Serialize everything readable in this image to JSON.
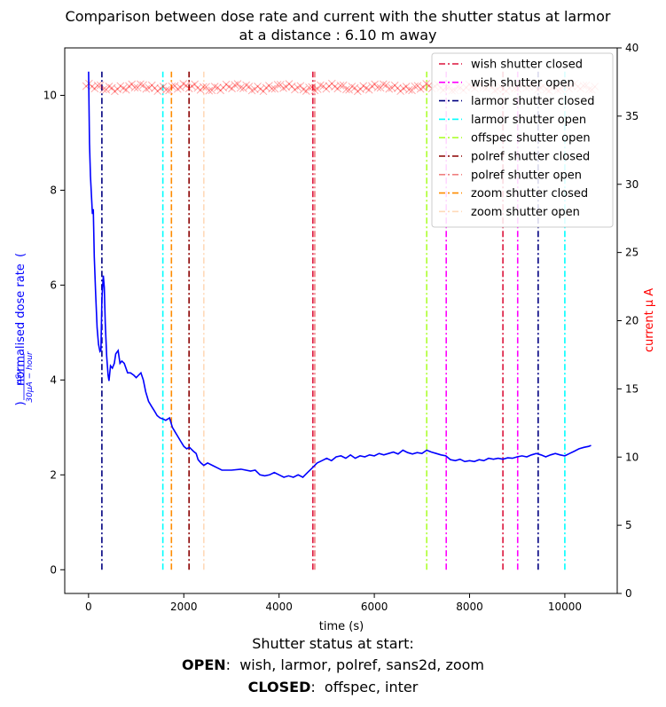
{
  "chart_data": {
    "type": "line",
    "title_line1": "Comparison between dose rate and current with the shutter status at larmor",
    "title_line2": "at a distance : 6.10 m away",
    "xlabel": "time (s)",
    "ylabel_left": "normalised dose rate",
    "ylabel_left_unit_num": "μSv",
    "ylabel_left_unit_den": "30μA − hour",
    "ylabel_right": "current μ A",
    "xlim": [
      -500,
      11100
    ],
    "ylim_left": [
      -0.5,
      11
    ],
    "ylim_right": [
      0,
      40
    ],
    "x_ticks": [
      0,
      2000,
      4000,
      6000,
      8000,
      10000
    ],
    "y_left_ticks": [
      0,
      2,
      4,
      6,
      8,
      10
    ],
    "y_right_ticks": [
      0,
      5,
      10,
      15,
      20,
      25,
      30,
      35,
      40
    ],
    "grid": false,
    "legend_position": "top-right",
    "dose_series": {
      "name": "normalised dose rate",
      "color": "#0000ff",
      "points": [
        [
          0,
          10.5
        ],
        [
          20,
          9.0
        ],
        [
          40,
          8.3
        ],
        [
          60,
          7.9
        ],
        [
          80,
          7.5
        ],
        [
          100,
          7.6
        ],
        [
          120,
          6.6
        ],
        [
          150,
          5.8
        ],
        [
          180,
          5.1
        ],
        [
          210,
          4.75
        ],
        [
          240,
          4.6
        ],
        [
          260,
          4.62
        ],
        [
          280,
          5.7
        ],
        [
          310,
          6.2
        ],
        [
          330,
          5.95
        ],
        [
          350,
          5.2
        ],
        [
          380,
          4.5
        ],
        [
          410,
          4.1
        ],
        [
          430,
          3.98
        ],
        [
          460,
          4.3
        ],
        [
          500,
          4.25
        ],
        [
          540,
          4.35
        ],
        [
          570,
          4.55
        ],
        [
          620,
          4.62
        ],
        [
          660,
          4.35
        ],
        [
          700,
          4.4
        ],
        [
          750,
          4.35
        ],
        [
          820,
          4.15
        ],
        [
          880,
          4.15
        ],
        [
          950,
          4.1
        ],
        [
          1000,
          4.05
        ],
        [
          1050,
          4.1
        ],
        [
          1100,
          4.15
        ],
        [
          1150,
          4.0
        ],
        [
          1200,
          3.75
        ],
        [
          1260,
          3.55
        ],
        [
          1320,
          3.45
        ],
        [
          1380,
          3.35
        ],
        [
          1440,
          3.25
        ],
        [
          1500,
          3.2
        ],
        [
          1560,
          3.18
        ],
        [
          1620,
          3.15
        ],
        [
          1700,
          3.2
        ],
        [
          1760,
          3.0
        ],
        [
          1820,
          2.9
        ],
        [
          1880,
          2.8
        ],
        [
          1940,
          2.7
        ],
        [
          2000,
          2.6
        ],
        [
          2060,
          2.55
        ],
        [
          2120,
          2.58
        ],
        [
          2200,
          2.5
        ],
        [
          2260,
          2.45
        ],
        [
          2300,
          2.32
        ],
        [
          2360,
          2.25
        ],
        [
          2420,
          2.2
        ],
        [
          2500,
          2.25
        ],
        [
          2600,
          2.2
        ],
        [
          2700,
          2.15
        ],
        [
          2800,
          2.1
        ],
        [
          3000,
          2.1
        ],
        [
          3200,
          2.12
        ],
        [
          3400,
          2.08
        ],
        [
          3500,
          2.1
        ],
        [
          3600,
          2.0
        ],
        [
          3700,
          1.98
        ],
        [
          3800,
          2.0
        ],
        [
          3900,
          2.05
        ],
        [
          4000,
          2.0
        ],
        [
          4100,
          1.95
        ],
        [
          4200,
          1.98
        ],
        [
          4300,
          1.95
        ],
        [
          4400,
          2.0
        ],
        [
          4500,
          1.95
        ],
        [
          4600,
          2.05
        ],
        [
          4700,
          2.15
        ],
        [
          4800,
          2.25
        ],
        [
          4900,
          2.3
        ],
        [
          5000,
          2.35
        ],
        [
          5100,
          2.3
        ],
        [
          5200,
          2.38
        ],
        [
          5300,
          2.4
        ],
        [
          5400,
          2.35
        ],
        [
          5500,
          2.42
        ],
        [
          5600,
          2.35
        ],
        [
          5700,
          2.4
        ],
        [
          5800,
          2.38
        ],
        [
          5900,
          2.42
        ],
        [
          6000,
          2.4
        ],
        [
          6100,
          2.45
        ],
        [
          6200,
          2.42
        ],
        [
          6300,
          2.45
        ],
        [
          6400,
          2.48
        ],
        [
          6500,
          2.44
        ],
        [
          6600,
          2.52
        ],
        [
          6700,
          2.47
        ],
        [
          6800,
          2.44
        ],
        [
          6900,
          2.47
        ],
        [
          7000,
          2.45
        ],
        [
          7100,
          2.52
        ],
        [
          7200,
          2.48
        ],
        [
          7300,
          2.45
        ],
        [
          7400,
          2.42
        ],
        [
          7500,
          2.4
        ],
        [
          7600,
          2.32
        ],
        [
          7700,
          2.3
        ],
        [
          7800,
          2.33
        ],
        [
          7900,
          2.28
        ],
        [
          8000,
          2.3
        ],
        [
          8100,
          2.28
        ],
        [
          8200,
          2.32
        ],
        [
          8300,
          2.3
        ],
        [
          8400,
          2.35
        ],
        [
          8500,
          2.33
        ],
        [
          8600,
          2.35
        ],
        [
          8700,
          2.33
        ],
        [
          8800,
          2.36
        ],
        [
          8900,
          2.35
        ],
        [
          9000,
          2.38
        ],
        [
          9100,
          2.4
        ],
        [
          9200,
          2.38
        ],
        [
          9300,
          2.42
        ],
        [
          9400,
          2.45
        ],
        [
          9500,
          2.42
        ],
        [
          9600,
          2.38
        ],
        [
          9700,
          2.42
        ],
        [
          9800,
          2.45
        ],
        [
          9900,
          2.42
        ],
        [
          10000,
          2.4
        ],
        [
          10100,
          2.45
        ],
        [
          10200,
          2.5
        ],
        [
          10300,
          2.55
        ],
        [
          10400,
          2.58
        ],
        [
          10500,
          2.6
        ],
        [
          10550,
          2.62
        ]
      ]
    },
    "current_series": {
      "name": "current μ A",
      "color": "#ff0000",
      "x_start": -50,
      "x_end": 10650,
      "x_step": 60,
      "mean": 37.1,
      "jitter": 0.18
    },
    "shutter_events": [
      {
        "label": "wish shutter closed",
        "color": "#dc143c",
        "x": [
          4710,
          8700
        ]
      },
      {
        "label": "wish shutter open",
        "color": "#ff00ff",
        "x": [
          7510,
          9010
        ]
      },
      {
        "label": "larmor shutter closed",
        "color": "#000080",
        "x": [
          280,
          9440
        ]
      },
      {
        "label": "larmor shutter open",
        "color": "#00ffff",
        "x": [
          1560,
          10000
        ]
      },
      {
        "label": "offspec shutter open",
        "color": "#adff2f",
        "x": [
          7100
        ]
      },
      {
        "label": "polref shutter closed",
        "color": "#8b0000",
        "x": [
          2110
        ]
      },
      {
        "label": "polref shutter open",
        "color": "#f08080",
        "x": [
          4750
        ]
      },
      {
        "label": "zoom shutter closed",
        "color": "#ff8c00",
        "x": [
          1740
        ]
      },
      {
        "label": "zoom shutter open",
        "color": "#ffdab9",
        "x": [
          2420
        ]
      }
    ],
    "event_line_ylim": [
      0,
      10.5
    ]
  },
  "caption": {
    "line1": "Shutter status at start:",
    "open_label": "OPEN",
    "open_text": ":  wish, larmor, polref, sans2d, zoom",
    "closed_label": "CLOSED",
    "closed_text": ":  offspec, inter"
  }
}
